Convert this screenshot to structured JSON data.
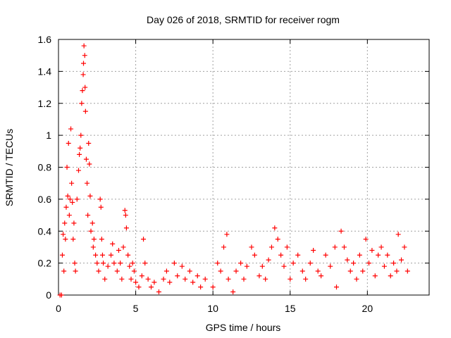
{
  "chart_data": {
    "type": "scatter",
    "title": "Day 026 of 2018, SRMTID for receiver rogm",
    "xlabel": "GPS time / hours",
    "ylabel": "SRMTID / TECUs",
    "xlim": [
      0,
      24
    ],
    "ylim": [
      0,
      1.6
    ],
    "grid": true,
    "x_ticks": [
      0,
      5,
      10,
      15,
      20
    ],
    "x_tick_labels": [
      "0",
      "5",
      "10",
      "15",
      "20"
    ],
    "y_ticks": [
      0,
      0.2,
      0.4,
      0.6,
      0.8,
      1.0,
      1.2,
      1.4,
      1.6
    ],
    "y_tick_labels": [
      "0",
      "0.2",
      "0.4",
      "0.6",
      "0.8",
      "1",
      "1.2",
      "1.4",
      "1.6"
    ],
    "marker": "+",
    "series": [
      {
        "name": "SRMTID",
        "color": "#ff0000",
        "points": [
          [
            0.1,
            0.0
          ],
          [
            0.2,
            0.0
          ],
          [
            0.25,
            0.25
          ],
          [
            0.3,
            0.38
          ],
          [
            0.35,
            0.15
          ],
          [
            0.4,
            0.45
          ],
          [
            0.45,
            0.35
          ],
          [
            0.5,
            0.55
          ],
          [
            0.55,
            0.8
          ],
          [
            0.6,
            0.62
          ],
          [
            0.65,
            0.95
          ],
          [
            0.7,
            0.5
          ],
          [
            0.75,
            0.6
          ],
          [
            0.8,
            1.04
          ],
          [
            0.85,
            0.7
          ],
          [
            0.9,
            0.58
          ],
          [
            0.95,
            0.35
          ],
          [
            1.0,
            0.45
          ],
          [
            1.05,
            0.2
          ],
          [
            1.1,
            0.15
          ],
          [
            1.2,
            0.6
          ],
          [
            1.3,
            0.78
          ],
          [
            1.35,
            0.88
          ],
          [
            1.4,
            0.92
          ],
          [
            1.45,
            1.0
          ],
          [
            1.5,
            1.2
          ],
          [
            1.55,
            1.28
          ],
          [
            1.6,
            1.38
          ],
          [
            1.62,
            1.45
          ],
          [
            1.65,
            1.56
          ],
          [
            1.7,
            1.5
          ],
          [
            1.72,
            1.3
          ],
          [
            1.75,
            1.15
          ],
          [
            1.8,
            0.85
          ],
          [
            1.85,
            0.7
          ],
          [
            1.9,
            0.5
          ],
          [
            1.95,
            0.95
          ],
          [
            2.0,
            0.82
          ],
          [
            2.05,
            0.62
          ],
          [
            2.1,
            0.4
          ],
          [
            2.2,
            0.45
          ],
          [
            2.25,
            0.3
          ],
          [
            2.3,
            0.35
          ],
          [
            2.4,
            0.25
          ],
          [
            2.5,
            0.2
          ],
          [
            2.6,
            0.15
          ],
          [
            2.7,
            0.6
          ],
          [
            2.75,
            0.55
          ],
          [
            2.8,
            0.35
          ],
          [
            2.85,
            0.25
          ],
          [
            2.9,
            0.2
          ],
          [
            3.0,
            0.1
          ],
          [
            3.2,
            0.18
          ],
          [
            3.4,
            0.25
          ],
          [
            3.5,
            0.32
          ],
          [
            3.6,
            0.2
          ],
          [
            3.8,
            0.15
          ],
          [
            3.9,
            0.28
          ],
          [
            4.0,
            0.2
          ],
          [
            4.1,
            0.1
          ],
          [
            4.2,
            0.3
          ],
          [
            4.3,
            0.53
          ],
          [
            4.35,
            0.5
          ],
          [
            4.4,
            0.42
          ],
          [
            4.5,
            0.25
          ],
          [
            4.6,
            0.18
          ],
          [
            4.7,
            0.1
          ],
          [
            4.8,
            0.2
          ],
          [
            4.9,
            0.15
          ],
          [
            5.0,
            0.08
          ],
          [
            5.2,
            0.05
          ],
          [
            5.4,
            0.12
          ],
          [
            5.5,
            0.35
          ],
          [
            5.6,
            0.2
          ],
          [
            5.8,
            0.1
          ],
          [
            6.0,
            0.05
          ],
          [
            6.2,
            0.08
          ],
          [
            6.5,
            0.02
          ],
          [
            6.8,
            0.1
          ],
          [
            7.0,
            0.15
          ],
          [
            7.2,
            0.08
          ],
          [
            7.5,
            0.2
          ],
          [
            7.7,
            0.12
          ],
          [
            8.0,
            0.18
          ],
          [
            8.2,
            0.1
          ],
          [
            8.5,
            0.15
          ],
          [
            8.7,
            0.08
          ],
          [
            9.0,
            0.12
          ],
          [
            9.2,
            0.05
          ],
          [
            9.5,
            0.1
          ],
          [
            10.0,
            0.05
          ],
          [
            10.3,
            0.2
          ],
          [
            10.5,
            0.15
          ],
          [
            10.7,
            0.3
          ],
          [
            10.9,
            0.38
          ],
          [
            11.0,
            0.1
          ],
          [
            11.3,
            0.02
          ],
          [
            11.5,
            0.15
          ],
          [
            11.8,
            0.2
          ],
          [
            12.0,
            0.1
          ],
          [
            12.2,
            0.18
          ],
          [
            12.5,
            0.3
          ],
          [
            12.7,
            0.25
          ],
          [
            13.0,
            0.12
          ],
          [
            13.2,
            0.18
          ],
          [
            13.4,
            0.1
          ],
          [
            13.6,
            0.22
          ],
          [
            13.8,
            0.3
          ],
          [
            14.0,
            0.42
          ],
          [
            14.2,
            0.35
          ],
          [
            14.4,
            0.25
          ],
          [
            14.6,
            0.18
          ],
          [
            14.8,
            0.3
          ],
          [
            15.0,
            0.1
          ],
          [
            15.2,
            0.2
          ],
          [
            15.5,
            0.25
          ],
          [
            15.8,
            0.15
          ],
          [
            16.0,
            0.1
          ],
          [
            16.3,
            0.2
          ],
          [
            16.5,
            0.28
          ],
          [
            16.8,
            0.15
          ],
          [
            17.0,
            0.12
          ],
          [
            17.3,
            0.25
          ],
          [
            17.6,
            0.18
          ],
          [
            17.9,
            0.3
          ],
          [
            18.0,
            0.05
          ],
          [
            18.3,
            0.4
          ],
          [
            18.5,
            0.3
          ],
          [
            18.7,
            0.22
          ],
          [
            18.9,
            0.15
          ],
          [
            19.1,
            0.2
          ],
          [
            19.3,
            0.1
          ],
          [
            19.5,
            0.25
          ],
          [
            19.7,
            0.15
          ],
          [
            19.9,
            0.35
          ],
          [
            20.1,
            0.2
          ],
          [
            20.3,
            0.28
          ],
          [
            20.5,
            0.12
          ],
          [
            20.7,
            0.25
          ],
          [
            20.9,
            0.3
          ],
          [
            21.1,
            0.18
          ],
          [
            21.3,
            0.25
          ],
          [
            21.5,
            0.12
          ],
          [
            21.7,
            0.2
          ],
          [
            21.9,
            0.15
          ],
          [
            22.0,
            0.38
          ],
          [
            22.2,
            0.22
          ],
          [
            22.4,
            0.3
          ],
          [
            22.6,
            0.15
          ]
        ]
      }
    ]
  }
}
